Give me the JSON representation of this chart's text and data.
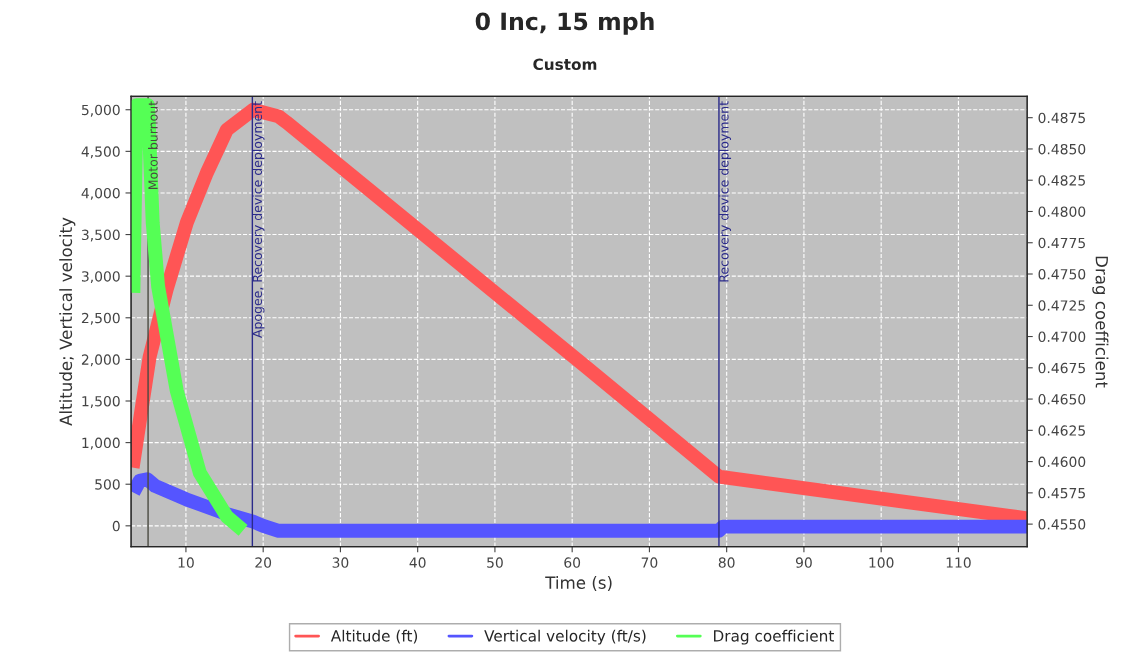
{
  "chart_data": {
    "type": "line",
    "title": "0 Inc, 15 mph",
    "subtitle": "Custom",
    "xlabel": "Time (s)",
    "ylabel": "Altitude; Vertical velocity",
    "y2label": "Drag coefficient",
    "xlim": [
      2.9,
      118.9
    ],
    "xticks": [
      10,
      20,
      30,
      40,
      50,
      60,
      70,
      80,
      90,
      100,
      110
    ],
    "ylim": [
      -250,
      5160
    ],
    "yticks": [
      0,
      500,
      {
        "value": 1000,
        "label": "1,000"
      },
      {
        "value": 1500,
        "label": "1,500"
      },
      {
        "value": 2000,
        "label": "2,000"
      },
      {
        "value": 2500,
        "label": "2,500"
      },
      {
        "value": 3000,
        "label": "3,000"
      },
      {
        "value": 3500,
        "label": "3,500"
      },
      {
        "value": 4000,
        "label": "4,000"
      },
      {
        "value": 4500,
        "label": "4,500"
      },
      {
        "value": 5000,
        "label": "5,000"
      }
    ],
    "y2lim": [
      0.4532,
      0.4892
    ],
    "y2ticks": [
      {
        "value": 0.455,
        "label": "0.4550"
      },
      0.4575,
      {
        "value": 0.46,
        "label": "0.4600"
      },
      0.4625,
      {
        "value": 0.465,
        "label": "0.4650"
      },
      0.4675,
      {
        "value": 0.47,
        "label": "0.4700"
      },
      0.4725,
      {
        "value": 0.475,
        "label": "0.4750"
      },
      0.4775,
      {
        "value": 0.48,
        "label": "0.4800"
      },
      0.4825,
      {
        "value": 0.485,
        "label": "0.4850"
      },
      0.4875
    ],
    "series": [
      {
        "name": "Altitude (ft)",
        "color": "#ff5555",
        "x": [
          3.1,
          5.3,
          7.5,
          10.1,
          12.7,
          15.3,
          18.7,
          22,
          23,
          61.9,
          79,
          118.9
        ],
        "values": [
          700,
          2030,
          2840,
          3640,
          4240,
          4760,
          5000,
          4920,
          4850,
          1900,
          590,
          90
        ]
      },
      {
        "name": "Vertical velocity (ft/s)",
        "color": "#5555ff",
        "x": [
          3.2,
          4,
          5,
          6,
          10,
          15,
          18.7,
          20,
          22,
          79,
          79.5,
          118.9
        ],
        "values": [
          400,
          540,
          560,
          480,
          320,
          150,
          50,
          0,
          -60,
          -60,
          -10,
          -10
        ]
      },
      {
        "name": "Drag coefficient",
        "color": "#55ff55",
        "axis": "y2",
        "x": [
          3.2,
          3.6,
          5.1,
          5.7,
          6.4,
          8.8,
          11.8,
          15.3,
          17.4
        ],
        "values": [
          0.4735,
          0.4885,
          0.4885,
          0.4791,
          0.474,
          0.4657,
          0.4591,
          0.4556,
          0.4545
        ]
      }
    ],
    "ref_lines": [
      {
        "axis": "x",
        "value": 5.1,
        "label": "Motor burnout",
        "color": "#4a4a40"
      },
      {
        "axis": "x",
        "value": 18.6,
        "label": "Apogee, Recovery device deployment",
        "color": "#2a2a8a"
      },
      {
        "axis": "x",
        "value": 79,
        "label": "Recovery device deployment",
        "color": "#2a2a8a"
      }
    ],
    "grid": true,
    "legend": "bottom"
  }
}
